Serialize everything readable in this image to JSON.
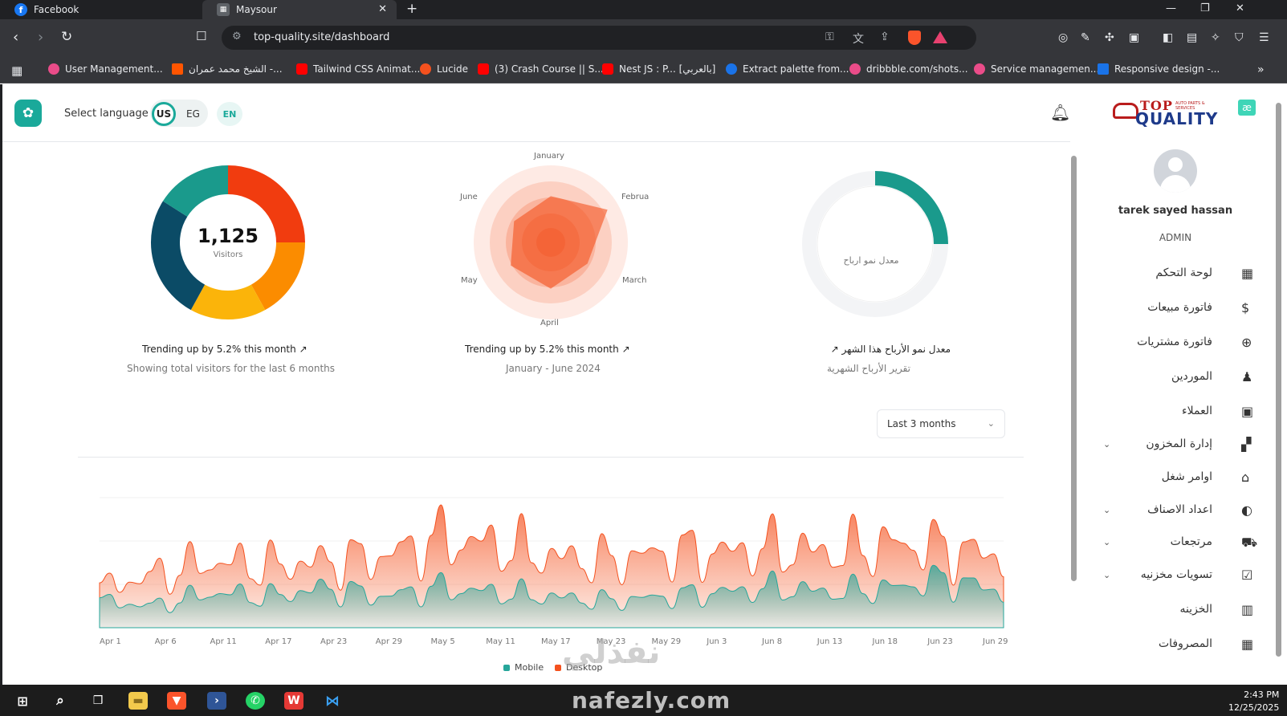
{
  "browser": {
    "tabs": [
      {
        "title": "Facebook"
      },
      {
        "title": "Maysour"
      }
    ],
    "url": "top-quality.site/dashboard",
    "bookmarks": [
      {
        "label": "User Management..."
      },
      {
        "label": "الشيخ محمد عمران -..."
      },
      {
        "label": "Tailwind CSS Animat..."
      },
      {
        "label": "Lucide"
      },
      {
        "label": "(3) Crash Course || S..."
      },
      {
        "label": "Nest JS : P... [بالعربي]"
      },
      {
        "label": "Extract palette from..."
      },
      {
        "label": "dribbble.com/shots..."
      },
      {
        "label": "Service managemen..."
      },
      {
        "label": "Responsive design -..."
      }
    ]
  },
  "header": {
    "select_language": "Select language",
    "lang_us": "US",
    "lang_eg": "EG",
    "lang_en": "EN"
  },
  "sidebar": {
    "user_name": "tarek sayed hassan",
    "user_role": "ADMIN",
    "items": [
      {
        "label": "لوحة التحكم",
        "icon": "dashboard-icon",
        "has_chevron": false
      },
      {
        "label": "فاتورة مبيعات",
        "icon": "sales-invoice-icon",
        "has_chevron": false
      },
      {
        "label": "فاتورة مشتريات",
        "icon": "plus-circle-icon",
        "has_chevron": false
      },
      {
        "label": "الموردين",
        "icon": "suppliers-icon",
        "has_chevron": false
      },
      {
        "label": "العملاء",
        "icon": "customers-card-icon",
        "has_chevron": false
      },
      {
        "label": "إدارة المخزون",
        "icon": "inventory-icon",
        "has_chevron": true
      },
      {
        "label": "اوامر شغل",
        "icon": "factory-icon",
        "has_chevron": false
      },
      {
        "label": "اعداد الاصناف",
        "icon": "items-setup-icon",
        "has_chevron": true
      },
      {
        "label": "مرتجعات",
        "icon": "returns-truck-icon",
        "has_chevron": true
      },
      {
        "label": "تسويات مخزنيه",
        "icon": "clipboard-check-icon",
        "has_chevron": true
      },
      {
        "label": "الخزينه",
        "icon": "safe-icon",
        "has_chevron": false
      },
      {
        "label": "المصروفات",
        "icon": "expenses-icon",
        "has_chevron": false
      }
    ]
  },
  "cards": {
    "visitors": {
      "total": "1,125",
      "label": "Visitors",
      "title": "Trending up by 5.2% this month",
      "subtitle": "Showing total visitors for the last 6 months"
    },
    "radar": {
      "title": "Trending up by 5.2% this month",
      "subtitle": "January - June 2024",
      "axis_labels": [
        "January",
        "Februa",
        "March",
        "April",
        "May",
        "June"
      ]
    },
    "profit": {
      "center_label": "معدل نمو ارباح",
      "title": "معدل نمو الأرباح هذا الشهر",
      "subtitle": "تقرير الأرباح الشهرية"
    }
  },
  "area_chart": {
    "range_select": "Last 3 months",
    "x_labels": [
      "Apr 1",
      "Apr 6",
      "Apr 11",
      "Apr 17",
      "Apr 23",
      "Apr 29",
      "May 5",
      "May 11",
      "May 17",
      "May 23",
      "May 29",
      "Jun 3",
      "Jun 8",
      "Jun 13",
      "Jun 18",
      "Jun 23",
      "Jun 29"
    ],
    "legend": [
      {
        "name": "Mobile",
        "color": "#26a69a"
      },
      {
        "name": "Desktop",
        "color": "#f4511e"
      }
    ]
  },
  "chart_data": [
    {
      "type": "pie",
      "variant": "donut",
      "total": 1125,
      "label": "Visitors",
      "slices": [
        {
          "value": 0.25,
          "color": "#f13c0f"
        },
        {
          "value": 0.17,
          "color": "#fb8c00"
        },
        {
          "value": 0.16,
          "color": "#fbb40a"
        },
        {
          "value": 0.26,
          "color": "#0b4b66"
        },
        {
          "value": 0.16,
          "color": "#1a9a8c"
        }
      ]
    },
    {
      "type": "radar",
      "categories": [
        "January",
        "Februa",
        "March",
        "April",
        "May",
        "June"
      ],
      "series": [
        {
          "values": [
            0.6,
            0.85,
            0.55,
            0.6,
            0.6,
            0.55
          ]
        }
      ],
      "color": "#f4511e"
    },
    {
      "type": "pie",
      "variant": "radial",
      "value": 0.25,
      "color": "#1a9a8c"
    },
    {
      "type": "area",
      "x": [
        "Apr 1",
        "Apr 6",
        "Apr 11",
        "Apr 17",
        "Apr 23",
        "Apr 29",
        "May 5",
        "May 11",
        "May 17",
        "May 23",
        "May 29",
        "Jun 3",
        "Jun 8",
        "Jun 13",
        "Jun 18",
        "Jun 23",
        "Jun 29"
      ],
      "series": [
        {
          "name": "Desktop",
          "color": "#f4511e",
          "values": [
            0.45,
            0.6,
            0.75,
            0.7,
            0.75,
            0.8,
            1.0,
            0.95,
            0.8,
            0.75,
            0.85,
            0.85,
            0.9,
            0.85,
            0.95,
            0.9,
            0.8
          ]
        },
        {
          "name": "Mobile",
          "color": "#26a69a",
          "values": [
            0.3,
            0.25,
            0.4,
            0.35,
            0.45,
            0.35,
            0.45,
            0.4,
            0.35,
            0.3,
            0.35,
            0.4,
            0.45,
            0.4,
            0.45,
            0.55,
            0.4
          ]
        }
      ]
    }
  ],
  "taskbar": {
    "time": "2:43 PM",
    "date": "12/25/2025"
  },
  "watermark": {
    "arabic": "نفذلي",
    "latin": "nafezly.com"
  }
}
